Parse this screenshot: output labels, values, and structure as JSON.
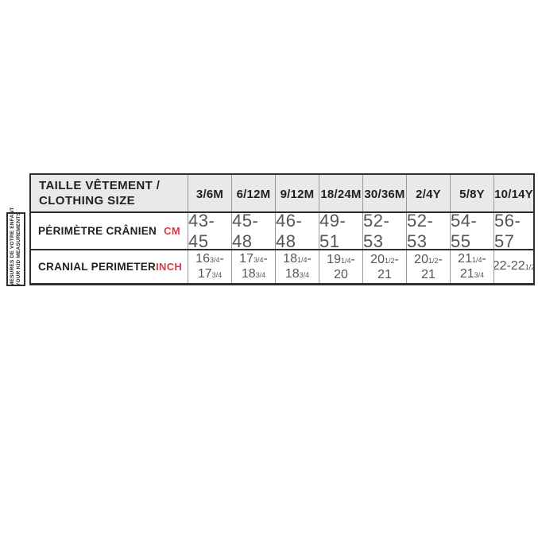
{
  "side_label": {
    "line1": "MESURES DE VOTRE ENFANT",
    "line2": "YOUR KID MEASUREMENTS"
  },
  "table": {
    "header": {
      "title_line1": "TAILLE VÊTEMENT /",
      "title_line2": "CLOTHING SIZE"
    },
    "columns": [
      "3/6M",
      "6/12M",
      "9/12M",
      "18/24M",
      "30/36M",
      "2/4Y",
      "5/8Y",
      "10/14Y"
    ],
    "rows": [
      {
        "label": "PÉRIMÈTRE CRÂNIEN",
        "unit": "CM",
        "values": [
          "43-45",
          "45-48",
          "46-48",
          "49-51",
          "52-53",
          "52-53",
          "54-55",
          "56-57"
        ]
      },
      {
        "label": "CRANIAL PERIMETER",
        "unit": "INCH",
        "cells": [
          {
            "lines": [
              {
                "pre": "16",
                "frac": "3/4",
                "post": "-"
              },
              {
                "pre": "17",
                "frac": "3/4",
                "post": ""
              }
            ]
          },
          {
            "lines": [
              {
                "pre": "17",
                "frac": "3/4",
                "post": "-"
              },
              {
                "pre": "18",
                "frac": "3/4",
                "post": ""
              }
            ]
          },
          {
            "lines": [
              {
                "pre": "18",
                "frac": "1/4",
                "post": "-"
              },
              {
                "pre": "18",
                "frac": "3/4",
                "post": ""
              }
            ]
          },
          {
            "lines": [
              {
                "pre": "19",
                "frac": "1/4",
                "post": "-"
              },
              {
                "pre": "20",
                "frac": "",
                "post": ""
              }
            ]
          },
          {
            "lines": [
              {
                "pre": "20",
                "frac": "1/2",
                "post": "-"
              },
              {
                "pre": "21",
                "frac": "",
                "post": ""
              }
            ]
          },
          {
            "lines": [
              {
                "pre": "20",
                "frac": "1/2",
                "post": "-"
              },
              {
                "pre": "21",
                "frac": "",
                "post": ""
              }
            ]
          },
          {
            "lines": [
              {
                "pre": "21",
                "frac": "1/4",
                "post": "-"
              },
              {
                "pre": "21",
                "frac": "3/4",
                "post": ""
              }
            ]
          },
          {
            "lines": [
              {
                "pre": "22-22",
                "frac": "1/2",
                "post": ""
              }
            ]
          }
        ]
      }
    ]
  },
  "colors": {
    "accent_red": "#e23742",
    "header_bg": "#e9e9e9",
    "border_dark": "#2e2e30",
    "grid_gray": "#98999b",
    "value_gray": "#545559",
    "label_dark": "#231f20"
  },
  "chart_data": {
    "type": "table",
    "title": "TAILLE VÊTEMENT / CLOTHING SIZE",
    "columns": [
      "TAILLE VÊTEMENT / CLOTHING SIZE",
      "3/6M",
      "6/12M",
      "9/12M",
      "18/24M",
      "30/36M",
      "2/4Y",
      "5/8Y",
      "10/14Y"
    ],
    "rows": [
      [
        "PÉRIMÈTRE CRÂNIEN (CM)",
        "43-45",
        "45-48",
        "46-48",
        "49-51",
        "52-53",
        "52-53",
        "54-55",
        "56-57"
      ],
      [
        "CRANIAL PERIMETER (INCH)",
        "16 3/4-17 3/4",
        "17 3/4-18 3/4",
        "18 1/4-18 3/4",
        "19 1/4-20",
        "20 1/2-21",
        "20 1/2-21",
        "21 1/4-21 3/4",
        "22-22 1/2"
      ]
    ],
    "row_group_label": "MESURES DE VOTRE ENFANT / YOUR KID MEASUREMENTS",
    "legend_position": "none",
    "grid": true
  }
}
